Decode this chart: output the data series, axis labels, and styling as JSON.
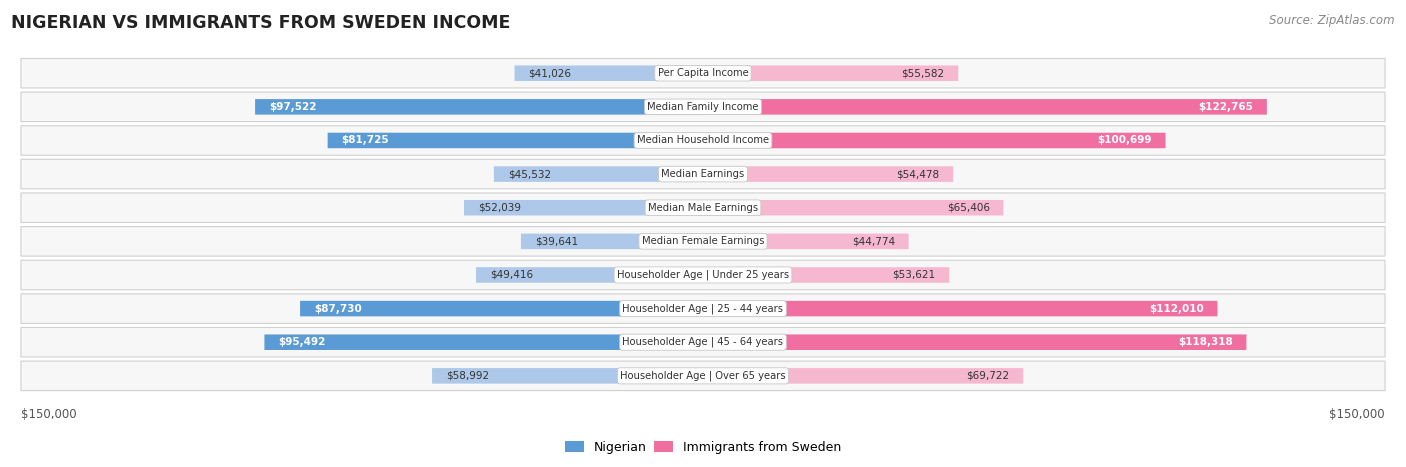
{
  "title": "NIGERIAN VS IMMIGRANTS FROM SWEDEN INCOME",
  "source": "Source: ZipAtlas.com",
  "categories": [
    "Per Capita Income",
    "Median Family Income",
    "Median Household Income",
    "Median Earnings",
    "Median Male Earnings",
    "Median Female Earnings",
    "Householder Age | Under 25 years",
    "Householder Age | 25 - 44 years",
    "Householder Age | 45 - 64 years",
    "Householder Age | Over 65 years"
  ],
  "nigerian_values": [
    41026,
    97522,
    81725,
    45532,
    52039,
    39641,
    49416,
    87730,
    95492,
    58992
  ],
  "sweden_values": [
    55582,
    122765,
    100699,
    54478,
    65406,
    44774,
    53621,
    112010,
    118318,
    69722
  ],
  "nigerian_labels": [
    "$41,026",
    "$97,522",
    "$81,725",
    "$45,532",
    "$52,039",
    "$39,641",
    "$49,416",
    "$87,730",
    "$95,492",
    "$58,992"
  ],
  "sweden_labels": [
    "$55,582",
    "$122,765",
    "$100,699",
    "$54,478",
    "$65,406",
    "$44,774",
    "$53,621",
    "$112,010",
    "$118,318",
    "$69,722"
  ],
  "max_value": 150000,
  "nigerian_color_light": "#adc8e8",
  "nigerian_color_dark": "#5b9bd5",
  "sweden_color_light": "#f5b8cf",
  "sweden_color_dark": "#f06ea0",
  "nigerian_highlight_indices": [
    1,
    2,
    7,
    8
  ],
  "sweden_highlight_indices": [
    1,
    2,
    7,
    8
  ],
  "background_color": "#ffffff",
  "row_bg_light": "#f2f2f2",
  "row_bg_white": "#ffffff",
  "legend_labels": [
    "Nigerian",
    "Immigrants from Sweden"
  ],
  "xlabel_left": "$150,000",
  "xlabel_right": "$150,000"
}
